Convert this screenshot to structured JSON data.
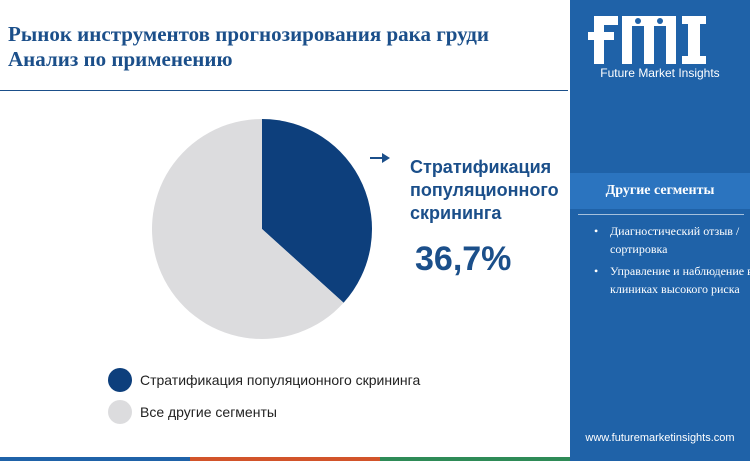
{
  "title_line1": "Рынок инструментов прогнозирования рака груди",
  "title_line2": "Анализ по применению",
  "logo": {
    "name": "fmi",
    "tagline": "Future Market Insights"
  },
  "sidebar": {
    "segments_title": "Другие сегменты",
    "segments": [
      "Диагностический отзыв / сортировка",
      "Управление и наблюдение в клиниках высокого риска"
    ],
    "website": "www.futuremarketinsights.com"
  },
  "colors": {
    "primary": "#0d3f7c",
    "other": "#dcdcde",
    "sidebar": "#1f62a8",
    "title": "#1b4f8a"
  },
  "chart_data": {
    "type": "pie",
    "slices": [
      {
        "label": "Стратификация популяционного скрининга",
        "value": 36.7,
        "color": "#0d3f7c"
      },
      {
        "label": "Все другие сегменты",
        "value": 63.3,
        "color": "#dcdcde"
      }
    ],
    "callout": {
      "label": "Стратификация популяционного скрининга",
      "value_text": "36,7%"
    },
    "legend": [
      "Стратификация популяционного скрининга",
      "Все другие сегменты"
    ],
    "legend_position": "bottom-left"
  }
}
